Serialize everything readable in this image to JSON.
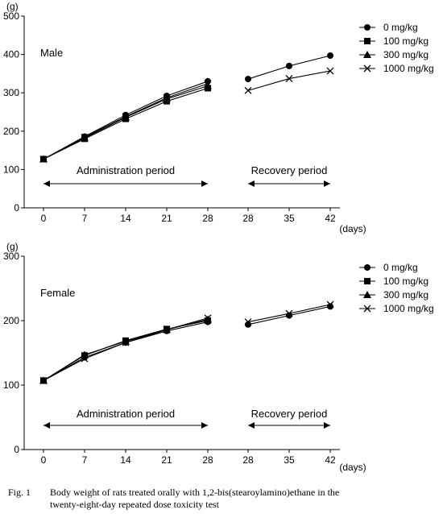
{
  "chart_data": [
    {
      "type": "line",
      "panel_label": "Male",
      "ylabel": "(g)",
      "xlabel": "(days)",
      "ylim": [
        0,
        500
      ],
      "yticks": [
        0,
        100,
        200,
        300,
        400,
        500
      ],
      "x_ticks_admin": [
        0,
        7,
        14,
        21,
        28
      ],
      "x_ticks_recovery": [
        28,
        35,
        42
      ],
      "period_labels": {
        "administration": "Administration period",
        "recovery": "Recovery period"
      },
      "legend_position": "top-right",
      "grid": false,
      "series": [
        {
          "name": "0 mg/kg",
          "marker": "circle",
          "admin": [
            127,
            186,
            242,
            292,
            330
          ],
          "recovery": [
            336,
            370,
            397
          ]
        },
        {
          "name": "100 mg/kg",
          "marker": "square",
          "admin": [
            127,
            180,
            232,
            278,
            312
          ],
          "recovery": []
        },
        {
          "name": "300 mg/kg",
          "marker": "triangle",
          "admin": [
            127,
            182,
            236,
            284,
            318
          ],
          "recovery": []
        },
        {
          "name": "1000 mg/kg",
          "marker": "x",
          "admin": [
            127,
            184,
            238,
            287,
            324
          ],
          "recovery": [
            306,
            337,
            357
          ]
        }
      ]
    },
    {
      "type": "line",
      "panel_label": "Female",
      "ylabel": "(g)",
      "xlabel": "(days)",
      "ylim": [
        0,
        300
      ],
      "yticks": [
        0,
        100,
        200,
        300
      ],
      "x_ticks_admin": [
        0,
        7,
        14,
        21,
        28
      ],
      "x_ticks_recovery": [
        28,
        35,
        42
      ],
      "period_labels": {
        "administration": "Administration period",
        "recovery": "Recovery period"
      },
      "legend_position": "top-right",
      "grid": false,
      "series": [
        {
          "name": "0 mg/kg",
          "marker": "circle",
          "admin": [
            107,
            143,
            166,
            184,
            198
          ],
          "recovery": [
            194,
            208,
            222
          ]
        },
        {
          "name": "100 mg/kg",
          "marker": "square",
          "admin": [
            107,
            146,
            169,
            187,
            200
          ],
          "recovery": []
        },
        {
          "name": "300 mg/kg",
          "marker": "triangle",
          "admin": [
            107,
            147,
            168,
            186,
            202
          ],
          "recovery": []
        },
        {
          "name": "1000 mg/kg",
          "marker": "x",
          "admin": [
            107,
            141,
            166,
            186,
            204
          ],
          "recovery": [
            198,
            211,
            225
          ]
        }
      ]
    }
  ],
  "caption": {
    "number": "Fig. 1",
    "line1": "Body weight of rats treated orally with 1,2-bis(stearoylamino)ethane in the",
    "line2": "twenty-eight-day repeated dose toxicity test"
  }
}
